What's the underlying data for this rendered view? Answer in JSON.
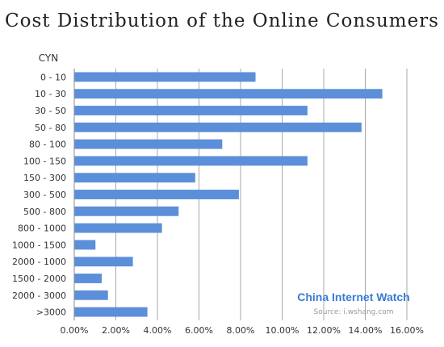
{
  "chart_data": {
    "type": "bar",
    "orientation": "horizontal",
    "title": "Cost Distribution of the Online Consumers",
    "ylabel": "CYN",
    "xlabel": "",
    "categories": [
      "0 - 10",
      "10 - 30",
      "30 - 50",
      "50 - 80",
      "80 - 100",
      "100 - 150",
      "150 - 300",
      "300 - 500",
      "500 - 800",
      "800 - 1000",
      "1000 - 1500",
      "2000 - 1000",
      "1500 - 2000",
      "2000 - 3000",
      ">3000"
    ],
    "values": [
      8.7,
      14.8,
      11.2,
      13.8,
      7.1,
      11.2,
      5.8,
      7.9,
      5.0,
      4.2,
      1.0,
      2.8,
      1.3,
      1.6,
      3.5
    ],
    "xlim": [
      0,
      16
    ],
    "xticks": [
      "0.00%",
      "2.00%",
      "4.00%",
      "6.00%",
      "8.00%",
      "10.00%",
      "12.00%",
      "14.00%",
      "16.00%"
    ],
    "grid": true,
    "bar_color": "#5b8fd9",
    "legend": "none"
  },
  "watermark": {
    "title": "China Internet Watch",
    "source": "Source: i.wshang.com",
    "color": "#3a7bd5"
  }
}
